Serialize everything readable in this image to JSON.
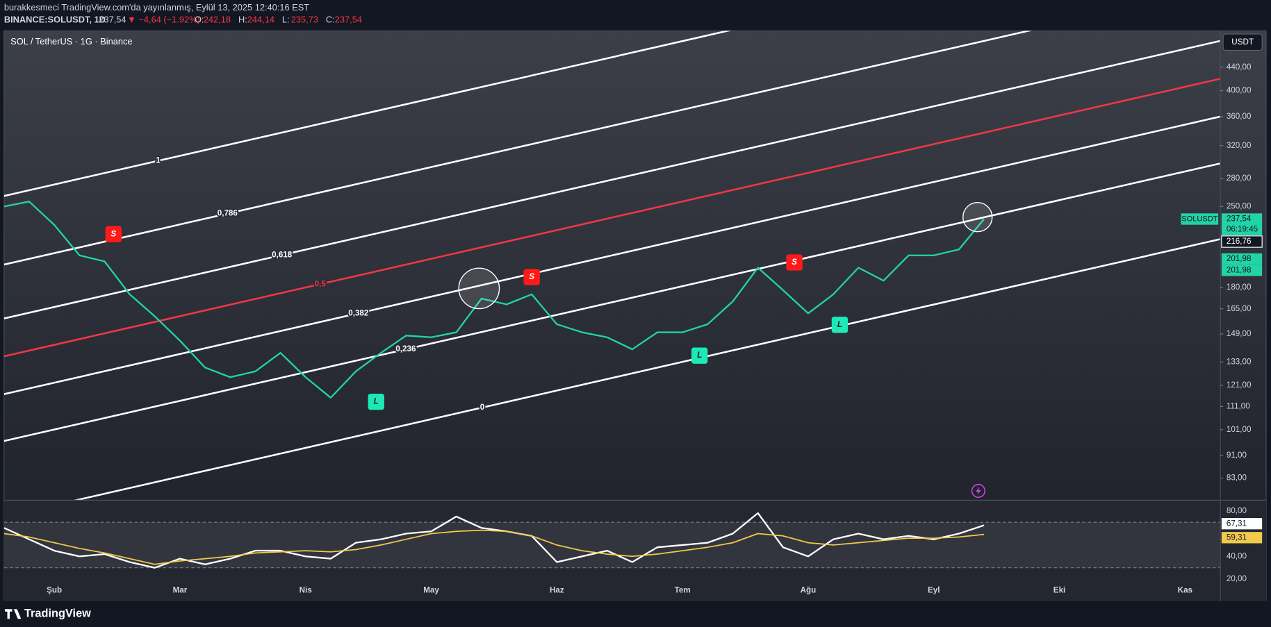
{
  "header": {
    "published": "burakkesmeci TradingView.com'da yayınlanmış, Eylül 13, 2025 12:40:16 EST",
    "symbol": "BINANCE:SOLUSDT, 1D",
    "last": "237,54",
    "change": "▼ −4,64 (−1.92%)",
    "ohlc": [
      {
        "key": "O:",
        "value": "242,18"
      },
      {
        "key": "H:",
        "value": "244,14"
      },
      {
        "key": "L:",
        "value": "235,73"
      },
      {
        "key": "C:",
        "value": "237,54"
      }
    ]
  },
  "chart_data": {
    "type": "line",
    "title": "SOL / TetherUS · 1G · Binance",
    "currency": "USDT",
    "log_scale": true,
    "grid": false,
    "categories": [
      null,
      null,
      "Şub",
      null,
      null,
      null,
      null,
      "Mar",
      null,
      null,
      null,
      null,
      "Nis",
      null,
      null,
      null,
      null,
      "May",
      null,
      null,
      null,
      null,
      "Haz",
      null,
      null,
      null,
      null,
      "Tem",
      null,
      null,
      null,
      null,
      "Ağu",
      null,
      null,
      null,
      null,
      "Eyl",
      null,
      null,
      null,
      null,
      "Eki",
      null,
      null,
      null,
      null,
      "Kas",
      null
    ],
    "series": [
      {
        "name": "SOLUSDT",
        "color": "#22d3a6",
        "values": [
          250,
          255,
          232,
          205,
          200,
          175,
          160,
          145,
          130,
          125,
          128,
          138,
          125,
          115,
          128,
          138,
          148,
          147,
          150,
          172,
          168,
          175,
          155,
          150,
          147,
          140,
          150,
          150,
          155,
          170,
          195,
          178,
          162,
          175,
          195,
          185,
          205,
          205,
          210,
          237.54,
          null,
          null,
          null,
          null,
          null,
          null,
          null,
          null,
          null
        ]
      }
    ],
    "ylim": [
      76,
      510
    ],
    "yticks": [
      {
        "value": 440,
        "label": "440,00"
      },
      {
        "value": 400,
        "label": "400,00"
      },
      {
        "value": 360,
        "label": "360,00"
      },
      {
        "value": 320,
        "label": "320,00"
      },
      {
        "value": 280,
        "label": "280,00"
      },
      {
        "value": 250,
        "label": "250,00"
      },
      {
        "value": 180,
        "label": "180,00"
      },
      {
        "value": 165,
        "label": "165,00"
      },
      {
        "value": 149,
        "label": "149,00"
      },
      {
        "value": 133,
        "label": "133,00"
      },
      {
        "value": 121,
        "label": "121,00"
      },
      {
        "value": 111,
        "label": "111,00"
      },
      {
        "value": 101,
        "label": "101,00"
      },
      {
        "value": 91,
        "label": "91,00"
      },
      {
        "value": 83,
        "label": "83,00"
      }
    ],
    "price_labels": [
      {
        "value": 237.54,
        "label": "237,54",
        "note": "06:19:45",
        "color": "#22d3a6"
      },
      {
        "value": 216.76,
        "label": "216,76",
        "color": "#ffffff"
      },
      {
        "value": 201.98,
        "label": "201,98",
        "color": "#22d3a6"
      },
      {
        "value": 201.98,
        "label": "201,98",
        "color": "#22d3a6"
      }
    ],
    "fib_levels": [
      {
        "value": 1,
        "label": "1",
        "color": "#ffffff"
      },
      {
        "value": 0.786,
        "label": "0,786",
        "color": "#ffffff"
      },
      {
        "value": 0.618,
        "label": "0,618",
        "color": "#ffffff"
      },
      {
        "value": 0.5,
        "label": "0,5",
        "color": "#f23645"
      },
      {
        "value": 0.382,
        "label": "0,382",
        "color": "#ffffff"
      },
      {
        "value": 0.236,
        "label": "0,236",
        "color": "#ffffff"
      },
      {
        "value": 0,
        "label": "0",
        "color": "#ffffff"
      }
    ],
    "signals": [
      "S",
      "S",
      "S",
      "L",
      "L",
      "L"
    ],
    "rsi": {
      "type": "line",
      "ylim": [
        20,
        89
      ],
      "yticks": [
        {
          "value": 80,
          "label": "80,00"
        },
        {
          "value": 40,
          "label": "40,00"
        },
        {
          "value": 20,
          "label": "20,00"
        }
      ],
      "bands": [
        70,
        30
      ],
      "series": [
        {
          "color": "#ffffff",
          "values": [
            65,
            55,
            45,
            40,
            42,
            35,
            30,
            38,
            33,
            38,
            45,
            45,
            40,
            38,
            52,
            55,
            60,
            62,
            75,
            65,
            62,
            58,
            35,
            40,
            45,
            35,
            48,
            50,
            52,
            60,
            78,
            48,
            40,
            55,
            60,
            55,
            58,
            55,
            60,
            67.31,
            null,
            null,
            null,
            null,
            null,
            null,
            null,
            null,
            null
          ],
          "value_labels": "67,31"
        },
        {
          "color": "#f2c94c",
          "values": [
            60,
            57,
            52,
            47,
            43,
            38,
            33,
            36,
            38,
            40,
            43,
            44,
            45,
            44,
            46,
            50,
            55,
            60,
            62,
            63,
            62,
            58,
            50,
            45,
            42,
            40,
            42,
            45,
            48,
            52,
            60,
            58,
            52,
            50,
            52,
            54,
            56,
            56,
            57,
            59.31,
            null,
            null,
            null,
            null,
            null,
            null,
            null,
            null,
            null
          ],
          "value_labels": "59,31"
        }
      ]
    }
  },
  "footer": "TradingView"
}
